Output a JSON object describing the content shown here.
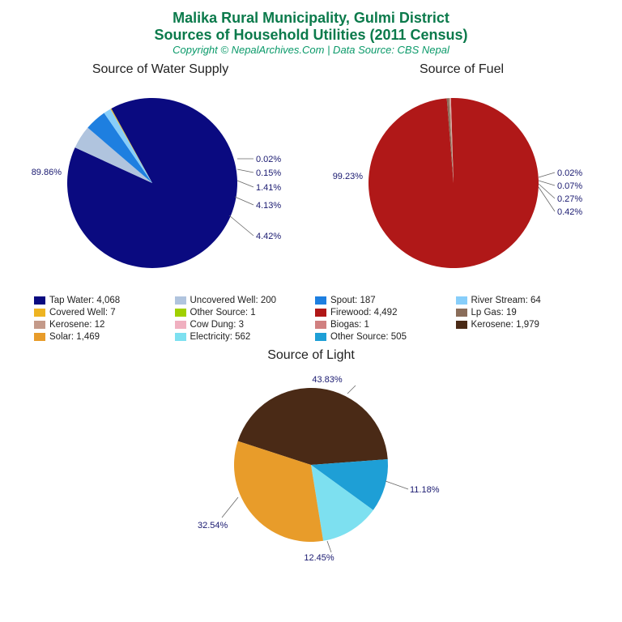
{
  "header": {
    "title_line1": "Malika Rural Municipality, Gulmi District",
    "title_line2": "Sources of Household Utilities (2011 Census)",
    "title_color": "#0b7a4b",
    "copyright": "Copyright © NepalArchives.Com | Data Source: CBS Nepal",
    "copyright_color": "#0b9a6a"
  },
  "chart_water": {
    "type": "pie",
    "title": "Source of Water Supply",
    "big_label": "89.86%",
    "slices": [
      {
        "pct": 89.86,
        "color": "#0a0a80"
      },
      {
        "pct": 4.42,
        "color": "#b0c4de"
      },
      {
        "pct": 4.13,
        "color": "#1e7fe0"
      },
      {
        "pct": 1.41,
        "color": "#87cefa"
      },
      {
        "pct": 0.15,
        "color": "#eeb422"
      },
      {
        "pct": 0.02,
        "color": "#a0d000"
      }
    ],
    "callouts": [
      "0.02%",
      "0.15%",
      "1.41%",
      "4.13%",
      "4.42%"
    ]
  },
  "chart_fuel": {
    "type": "pie",
    "title": "Source of Fuel",
    "big_label": "99.23%",
    "slices": [
      {
        "pct": 99.23,
        "color": "#b01818"
      },
      {
        "pct": 0.42,
        "color": "#8a6d5a"
      },
      {
        "pct": 0.27,
        "color": "#c49a8a"
      },
      {
        "pct": 0.07,
        "color": "#f0b0c0"
      },
      {
        "pct": 0.02,
        "color": "#d08080"
      }
    ],
    "callouts": [
      "0.02%",
      "0.07%",
      "0.27%",
      "0.42%"
    ]
  },
  "chart_light": {
    "type": "pie",
    "title": "Source of Light",
    "slices": [
      {
        "pct": 43.83,
        "color": "#4a2a16"
      },
      {
        "pct": 11.18,
        "color": "#1e9fd6"
      },
      {
        "pct": 12.45,
        "color": "#7de0f0"
      },
      {
        "pct": 32.54,
        "color": "#e89c2a"
      }
    ],
    "callouts": [
      "43.83%",
      "11.18%",
      "12.45%",
      "32.54%"
    ]
  },
  "legend": [
    {
      "label": "Tap Water: 4,068",
      "color": "#0a0a80"
    },
    {
      "label": "Uncovered Well: 200",
      "color": "#b0c4de"
    },
    {
      "label": "Spout: 187",
      "color": "#1e7fe0"
    },
    {
      "label": "River Stream: 64",
      "color": "#87cefa"
    },
    {
      "label": "Covered Well: 7",
      "color": "#eeb422"
    },
    {
      "label": "Other Source: 1",
      "color": "#a0d000"
    },
    {
      "label": "Firewood: 4,492",
      "color": "#b01818"
    },
    {
      "label": "Lp Gas: 19",
      "color": "#8a6d5a"
    },
    {
      "label": "Kerosene: 12",
      "color": "#c49a8a"
    },
    {
      "label": "Cow Dung: 3",
      "color": "#f0b0c0"
    },
    {
      "label": "Biogas: 1",
      "color": "#d08080"
    },
    {
      "label": "Kerosene: 1,979",
      "color": "#4a2a16"
    },
    {
      "label": "Solar: 1,469",
      "color": "#e89c2a"
    },
    {
      "label": "Electricity: 562",
      "color": "#7de0f0"
    },
    {
      "label": "Other Source: 505",
      "color": "#1e9fd6"
    }
  ]
}
